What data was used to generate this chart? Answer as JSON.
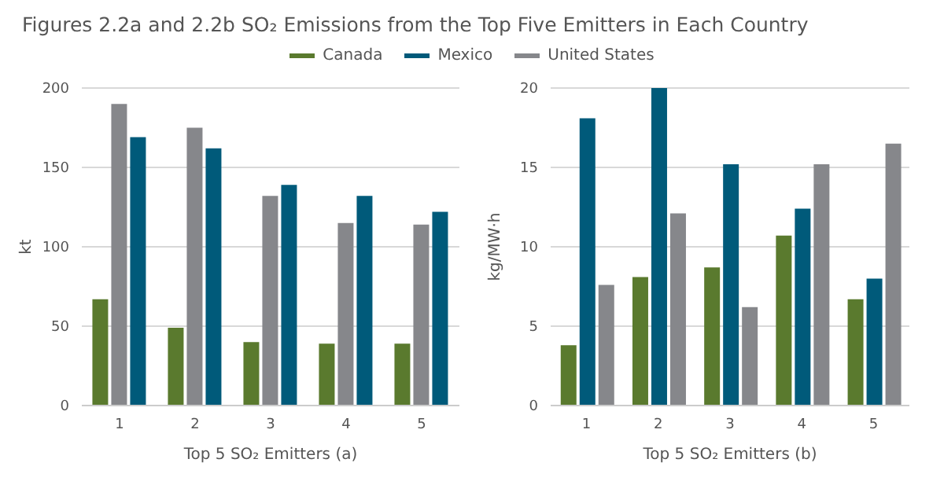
{
  "chart_data": [
    {
      "type": "bar",
      "title": "Figures 2.2a and 2.2b SO₂ Emissions from the Top Five Emitters in Each Country",
      "xlabel": "Top 5 SO₂ Emitters (a)",
      "ylabel": "kt",
      "categories": [
        "1",
        "2",
        "3",
        "4",
        "5"
      ],
      "series": [
        {
          "name": "Canada",
          "color": "#5a7a2e",
          "values": [
            67,
            49,
            40,
            39,
            39
          ]
        },
        {
          "name": "United States",
          "color": "#86878b",
          "values": [
            190,
            175,
            132,
            115,
            114
          ]
        },
        {
          "name": "Mexico",
          "color": "#005a7a",
          "values": [
            169,
            162,
            139,
            132,
            122
          ]
        }
      ],
      "ylim": [
        0,
        200
      ],
      "yticks": [
        0,
        50,
        100,
        150,
        200
      ],
      "grid": "y",
      "legend": "top right"
    },
    {
      "type": "bar",
      "xlabel": "Top 5 SO₂ Emitters (b)",
      "ylabel": "kg/MW·h",
      "categories": [
        "1",
        "2",
        "3",
        "4",
        "5"
      ],
      "series": [
        {
          "name": "Canada",
          "color": "#5a7a2e",
          "values": [
            3.8,
            8.1,
            8.7,
            10.7,
            6.7
          ]
        },
        {
          "name": "Mexico",
          "color": "#005a7a",
          "values": [
            18.1,
            20,
            15.2,
            12.4,
            8.0
          ]
        },
        {
          "name": "United States",
          "color": "#86878b",
          "values": [
            7.6,
            12.1,
            6.2,
            15.2,
            16.5
          ]
        }
      ],
      "ylim": [
        0,
        20
      ],
      "yticks": [
        0,
        5,
        10,
        15,
        20
      ],
      "grid": "y",
      "legend": "top left"
    }
  ]
}
